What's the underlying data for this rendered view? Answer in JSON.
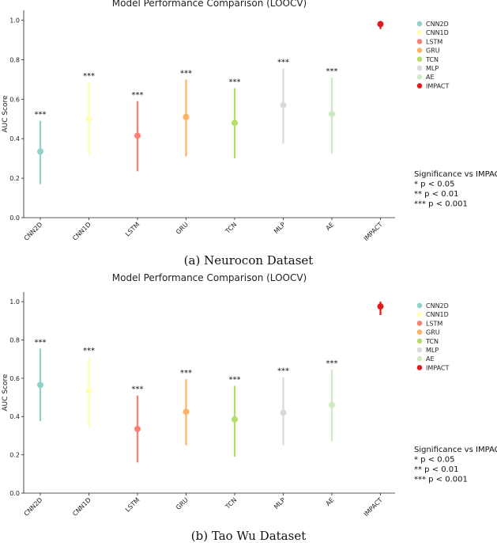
{
  "chart_data": [
    {
      "type": "scatter",
      "subtype": "point-with-error-bars",
      "title": "Model Performance Comparison (LOOCV)",
      "caption": "(a) Neurocon Dataset",
      "xlabel": "",
      "ylabel": "AUC Score",
      "ylim": [
        0,
        1.05
      ],
      "yticks": [
        "0.0",
        "0.2",
        "0.4",
        "0.6",
        "0.8",
        "1.0"
      ],
      "categories": [
        "CNN2D",
        "CNN1D",
        "LSTM",
        "GRU",
        "TCN",
        "MLP",
        "AE",
        "IMPACT"
      ],
      "values": [
        0.335,
        0.5,
        0.415,
        0.51,
        0.48,
        0.57,
        0.525,
        0.98
      ],
      "lower": [
        0.17,
        0.32,
        0.235,
        0.31,
        0.3,
        0.375,
        0.325,
        0.955
      ],
      "upper": [
        0.49,
        0.685,
        0.59,
        0.7,
        0.655,
        0.755,
        0.71,
        0.995
      ],
      "significance": [
        "***",
        "***",
        "***",
        "***",
        "***",
        "***",
        "***",
        ""
      ],
      "colors": [
        "#8dd3c7",
        "#ffffb3",
        "#fb8072",
        "#fdb462",
        "#b3de69",
        "#d9d9d9",
        "#ccebc5",
        "#e31a1c"
      ],
      "legend": [
        "CNN2D",
        "CNN1D",
        "LSTM",
        "GRU",
        "TCN",
        "MLP",
        "AE",
        "IMPACT"
      ],
      "significance_legend": [
        "Significance vs IMPACT:",
        "* p < 0.05",
        "** p < 0.01",
        "*** p < 0.001"
      ]
    },
    {
      "type": "scatter",
      "subtype": "point-with-error-bars",
      "title": "Model Performance Comparison (LOOCV)",
      "caption": "(b) Tao Wu Dataset",
      "xlabel": "",
      "ylabel": "AUC Score",
      "ylim": [
        0,
        1.05
      ],
      "yticks": [
        "0.0",
        "0.2",
        "0.4",
        "0.6",
        "0.8",
        "1.0"
      ],
      "categories": [
        "CNN2D",
        "CNN1D",
        "LSTM",
        "GRU",
        "TCN",
        "MLP",
        "AE",
        "IMPACT"
      ],
      "values": [
        0.565,
        0.535,
        0.335,
        0.425,
        0.385,
        0.42,
        0.46,
        0.975
      ],
      "lower": [
        0.375,
        0.345,
        0.16,
        0.25,
        0.19,
        0.25,
        0.27,
        0.93
      ],
      "upper": [
        0.755,
        0.71,
        0.51,
        0.595,
        0.56,
        0.605,
        0.645,
        1.0
      ],
      "significance": [
        "***",
        "***",
        "***",
        "***",
        "***",
        "***",
        "***",
        ""
      ],
      "colors": [
        "#8dd3c7",
        "#ffffb3",
        "#fb8072",
        "#fdb462",
        "#b3de69",
        "#d9d9d9",
        "#ccebc5",
        "#e31a1c"
      ],
      "legend": [
        "CNN2D",
        "CNN1D",
        "LSTM",
        "GRU",
        "TCN",
        "MLP",
        "AE",
        "IMPACT"
      ],
      "significance_legend": [
        "Significance vs IMPACT:",
        "* p < 0.05",
        "** p < 0.01",
        "*** p < 0.001"
      ]
    }
  ]
}
